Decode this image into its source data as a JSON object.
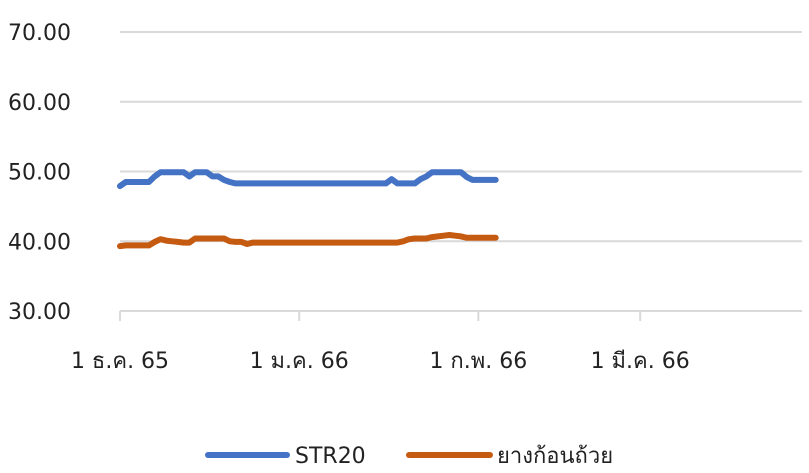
{
  "chart_data": {
    "type": "line",
    "y_ticks": [
      "70.00",
      "60.00",
      "50.00",
      "40.00",
      "30.00"
    ],
    "ylim": [
      30,
      70
    ],
    "x_ticks": [
      "1 ธ.ค. 65",
      "1 ม.ค. 66",
      "1 ก.พ. 66",
      "1 มี.ค. 66"
    ],
    "x_tick_days": [
      0,
      31,
      62,
      90
    ],
    "x_max_day": 118,
    "gridlines": true,
    "legend_position": "bottom",
    "series": [
      {
        "name": "STR20",
        "color": "#4472C4",
        "points": [
          [
            0,
            47.9
          ],
          [
            1,
            48.5
          ],
          [
            2,
            48.5
          ],
          [
            3,
            48.5
          ],
          [
            4,
            48.5
          ],
          [
            5,
            48.5
          ],
          [
            6,
            49.3
          ],
          [
            7,
            49.9
          ],
          [
            8,
            49.9
          ],
          [
            9,
            49.9
          ],
          [
            10,
            49.9
          ],
          [
            11,
            49.9
          ],
          [
            12,
            49.3
          ],
          [
            13,
            49.9
          ],
          [
            14,
            49.9
          ],
          [
            15,
            49.9
          ],
          [
            16,
            49.3
          ],
          [
            17,
            49.3
          ],
          [
            18,
            48.8
          ],
          [
            19,
            48.5
          ],
          [
            20,
            48.3
          ],
          [
            21,
            48.3
          ],
          [
            22,
            48.3
          ],
          [
            23,
            48.3
          ],
          [
            24,
            48.3
          ],
          [
            25,
            48.3
          ],
          [
            26,
            48.3
          ],
          [
            27,
            48.3
          ],
          [
            28,
            48.3
          ],
          [
            29,
            48.3
          ],
          [
            30,
            48.3
          ],
          [
            31,
            48.3
          ],
          [
            32,
            48.3
          ],
          [
            33,
            48.3
          ],
          [
            34,
            48.3
          ],
          [
            35,
            48.3
          ],
          [
            36,
            48.3
          ],
          [
            37,
            48.3
          ],
          [
            38,
            48.3
          ],
          [
            39,
            48.3
          ],
          [
            40,
            48.3
          ],
          [
            41,
            48.3
          ],
          [
            42,
            48.3
          ],
          [
            43,
            48.3
          ],
          [
            44,
            48.3
          ],
          [
            45,
            48.3
          ],
          [
            46,
            48.3
          ],
          [
            47,
            48.9
          ],
          [
            48,
            48.3
          ],
          [
            49,
            48.3
          ],
          [
            50,
            48.3
          ],
          [
            51,
            48.3
          ],
          [
            52,
            48.9
          ],
          [
            53,
            49.3
          ],
          [
            54,
            49.9
          ],
          [
            55,
            49.9
          ],
          [
            56,
            49.9
          ],
          [
            57,
            49.9
          ],
          [
            58,
            49.9
          ],
          [
            59,
            49.9
          ],
          [
            60,
            49.2
          ],
          [
            61,
            48.8
          ],
          [
            62,
            48.8
          ],
          [
            63,
            48.8
          ],
          [
            64,
            48.8
          ],
          [
            65,
            48.8
          ]
        ]
      },
      {
        "name": "ยางก้อนถ้วย",
        "color": "#C55A11",
        "points": [
          [
            0,
            39.3
          ],
          [
            1,
            39.4
          ],
          [
            2,
            39.4
          ],
          [
            3,
            39.4
          ],
          [
            4,
            39.4
          ],
          [
            5,
            39.4
          ],
          [
            6,
            39.9
          ],
          [
            7,
            40.3
          ],
          [
            8,
            40.1
          ],
          [
            9,
            40.0
          ],
          [
            10,
            39.9
          ],
          [
            11,
            39.8
          ],
          [
            12,
            39.8
          ],
          [
            13,
            40.4
          ],
          [
            14,
            40.4
          ],
          [
            15,
            40.4
          ],
          [
            16,
            40.4
          ],
          [
            17,
            40.4
          ],
          [
            18,
            40.4
          ],
          [
            19,
            40.0
          ],
          [
            20,
            39.9
          ],
          [
            21,
            39.9
          ],
          [
            22,
            39.6
          ],
          [
            23,
            39.8
          ],
          [
            24,
            39.8
          ],
          [
            25,
            39.8
          ],
          [
            26,
            39.8
          ],
          [
            27,
            39.8
          ],
          [
            28,
            39.8
          ],
          [
            29,
            39.8
          ],
          [
            30,
            39.8
          ],
          [
            31,
            39.8
          ],
          [
            32,
            39.8
          ],
          [
            33,
            39.8
          ],
          [
            34,
            39.8
          ],
          [
            35,
            39.8
          ],
          [
            36,
            39.8
          ],
          [
            37,
            39.8
          ],
          [
            38,
            39.8
          ],
          [
            39,
            39.8
          ],
          [
            40,
            39.8
          ],
          [
            41,
            39.8
          ],
          [
            42,
            39.8
          ],
          [
            43,
            39.8
          ],
          [
            44,
            39.8
          ],
          [
            45,
            39.8
          ],
          [
            46,
            39.8
          ],
          [
            47,
            39.8
          ],
          [
            48,
            39.8
          ],
          [
            49,
            40.0
          ],
          [
            50,
            40.3
          ],
          [
            51,
            40.4
          ],
          [
            52,
            40.4
          ],
          [
            53,
            40.4
          ],
          [
            54,
            40.6
          ],
          [
            55,
            40.7
          ],
          [
            56,
            40.8
          ],
          [
            57,
            40.9
          ],
          [
            58,
            40.8
          ],
          [
            59,
            40.7
          ],
          [
            60,
            40.5
          ],
          [
            61,
            40.5
          ],
          [
            62,
            40.5
          ],
          [
            63,
            40.5
          ],
          [
            64,
            40.5
          ],
          [
            65,
            40.5
          ]
        ]
      }
    ]
  }
}
